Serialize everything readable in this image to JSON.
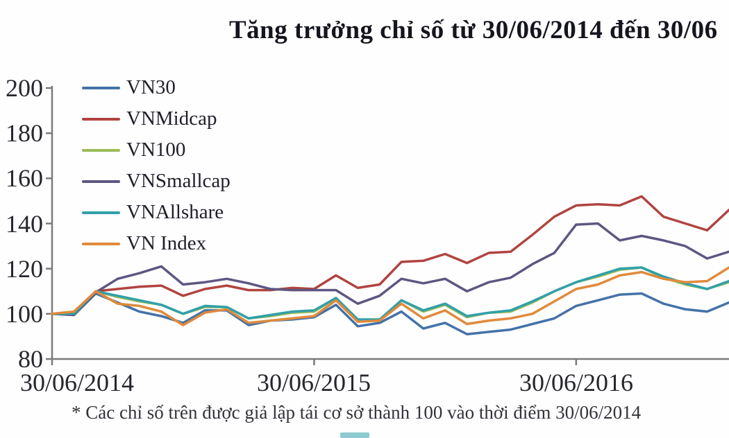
{
  "title": "Tăng trưởng chỉ số từ 30/06/2014 đến 30/06",
  "footnote": "* Các chỉ số trên được giả lập tái cơ sở thành 100 vào thời điểm 30/06/2014",
  "axis_color": "#7a7a7a",
  "chart_data": {
    "type": "line",
    "title": "Tăng trưởng chỉ số từ 30/06/2014 đến 30/06 (truncated at image edge)",
    "x_unit": "months since 30/06/2014",
    "x_tick_labels": [
      "30/06/2014",
      "30/06/2015",
      "30/06/2016"
    ],
    "x_tick_month_indices": [
      0,
      12,
      24
    ],
    "y_ticks": [
      200,
      180,
      160,
      140,
      120,
      100,
      80
    ],
    "ylim": [
      80,
      200
    ],
    "grid": false,
    "legend_position": "top-left-inside",
    "series": [
      {
        "name": "VN30",
        "color": "#4472a8",
        "values": [
          100,
          99.5,
          109,
          105,
          101,
          99,
          96,
          101.5,
          101.5,
          95,
          97,
          97.5,
          98.5,
          104,
          94.5,
          96,
          101,
          93.5,
          96,
          91,
          92,
          93,
          95.5,
          98,
          103.5,
          106,
          108.5,
          109,
          104.5,
          102,
          101,
          105
        ]
      },
      {
        "name": "VNMidcap",
        "color": "#b04441",
        "values": [
          100,
          100,
          110,
          111,
          112,
          112.5,
          108,
          111,
          112.5,
          110.5,
          110.5,
          111.5,
          111,
          117,
          111.5,
          113,
          123,
          123.5,
          126.5,
          122.5,
          127,
          127.5,
          135,
          143,
          148,
          148.5,
          148,
          152,
          143,
          140,
          137,
          146
        ]
      },
      {
        "name": "VN100",
        "color": "#9bbb59",
        "values": [
          100,
          100,
          110,
          107.5,
          105.5,
          104,
          100,
          103,
          103,
          98,
          99,
          100.5,
          101,
          107,
          97.5,
          97,
          106,
          101,
          104,
          98.5,
          100.5,
          101,
          105,
          110,
          114,
          116.5,
          119.5,
          120.5,
          116,
          113,
          111,
          114
        ]
      },
      {
        "name": "VNSmallcap",
        "color": "#5f5680",
        "values": [
          100,
          99.5,
          109.5,
          115.5,
          118,
          121,
          113,
          114,
          115.5,
          113.5,
          111,
          110.5,
          110.5,
          110.5,
          104.5,
          108,
          115.5,
          113.5,
          115.5,
          110,
          114,
          116,
          122,
          127,
          139.5,
          140,
          132.5,
          134.5,
          132.5,
          130,
          124.5,
          127.5
        ]
      },
      {
        "name": "VNAllshare",
        "color": "#31a0a8",
        "values": [
          100,
          100,
          110,
          108,
          106,
          104,
          100,
          103.5,
          103,
          98,
          99.5,
          101,
          101.5,
          107,
          97.5,
          97.5,
          106,
          101.5,
          104.5,
          99,
          100.5,
          101.5,
          105.5,
          110,
          114,
          117,
          120,
          120.5,
          116.5,
          113.5,
          111,
          114.5
        ]
      },
      {
        "name": "VN Index",
        "color": "#e08a3c",
        "values": [
          100,
          101,
          110,
          104.5,
          103.5,
          101,
          95,
          100.5,
          102,
          96,
          97,
          98,
          99,
          106,
          96.5,
          97,
          104.5,
          98,
          101.5,
          95.5,
          97,
          98,
          100,
          105.5,
          111,
          113,
          117,
          118.5,
          115.5,
          114,
          114.5,
          120.5
        ]
      }
    ]
  }
}
